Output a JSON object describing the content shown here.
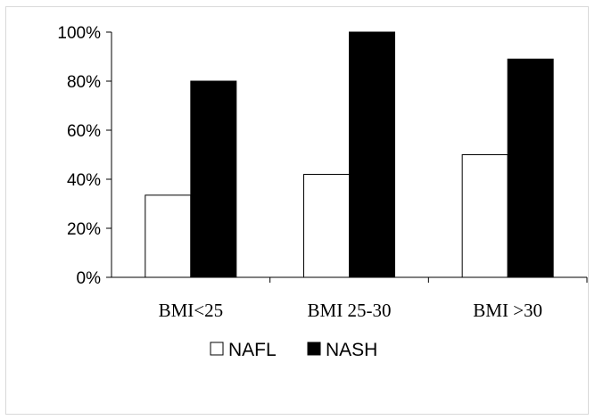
{
  "chart_data": {
    "type": "bar",
    "title": "",
    "xlabel": "",
    "ylabel": "",
    "categories": [
      "BMI<25",
      "BMI 25-30",
      "BMI >30"
    ],
    "series": [
      {
        "name": "NAFL",
        "values": [
          33.5,
          42,
          50
        ],
        "color": "#ffffff"
      },
      {
        "name": "NASH",
        "values": [
          80,
          100,
          89
        ],
        "color": "#000000"
      }
    ],
    "ylim": [
      0,
      100
    ],
    "yticks": [
      0,
      20,
      40,
      60,
      80,
      100
    ],
    "ytick_labels": [
      "0%",
      "20%",
      "40%",
      "60%",
      "80%",
      "100%"
    ],
    "grid": false,
    "legend_position": "bottom"
  }
}
